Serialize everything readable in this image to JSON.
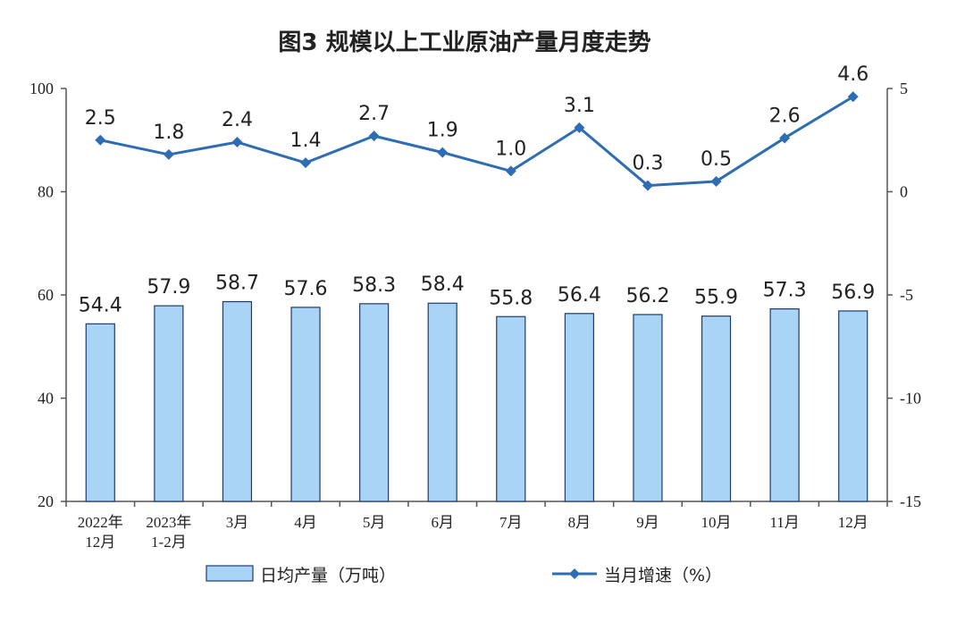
{
  "chart_data": {
    "type": "bar+line",
    "title": "图3  规模以上工业原油产量月度走势",
    "categories": [
      [
        "2022年",
        "12月"
      ],
      [
        "2023年",
        "1-2月"
      ],
      [
        "3月"
      ],
      [
        "4月"
      ],
      [
        "5月"
      ],
      [
        "6月"
      ],
      [
        "7月"
      ],
      [
        "8月"
      ],
      [
        "9月"
      ],
      [
        "10月"
      ],
      [
        "11月"
      ],
      [
        "12月"
      ]
    ],
    "series": [
      {
        "name": "日均产量（万吨）",
        "type": "bar",
        "axis": "left",
        "values": [
          54.4,
          57.9,
          58.7,
          57.6,
          58.3,
          58.4,
          55.8,
          56.4,
          56.2,
          55.9,
          57.3,
          56.9
        ],
        "labels": [
          "54.4",
          "57.9",
          "58.7",
          "57.6",
          "58.3",
          "58.4",
          "55.8",
          "56.4",
          "56.2",
          "55.9",
          "57.3",
          "56.9"
        ]
      },
      {
        "name": "当月增速（%）",
        "type": "line",
        "axis": "right",
        "values": [
          2.5,
          1.8,
          2.4,
          1.4,
          2.7,
          1.9,
          1.0,
          3.1,
          0.3,
          0.5,
          2.6,
          4.6
        ],
        "labels": [
          "2.5",
          "1.8",
          "2.4",
          "1.4",
          "2.7",
          "1.9",
          "1.0",
          "3.1",
          "0.3",
          "0.5",
          "2.6",
          "4.6"
        ]
      }
    ],
    "left_axis": {
      "min": 20,
      "max": 100,
      "ticks": [
        "20",
        "40",
        "60",
        "80",
        "100"
      ]
    },
    "right_axis": {
      "min": -15,
      "max": 5,
      "ticks": [
        "-15",
        "-10",
        "-5",
        "0",
        "5"
      ]
    },
    "legend": {
      "position": "bottom",
      "items": [
        "日均产量（万吨）",
        "当月增速（%）"
      ]
    },
    "colors": {
      "bar_fill": "#a9d4f5",
      "bar_stroke": "#1f3b6e",
      "line": "#2e6db4",
      "axis": "#555555"
    }
  }
}
